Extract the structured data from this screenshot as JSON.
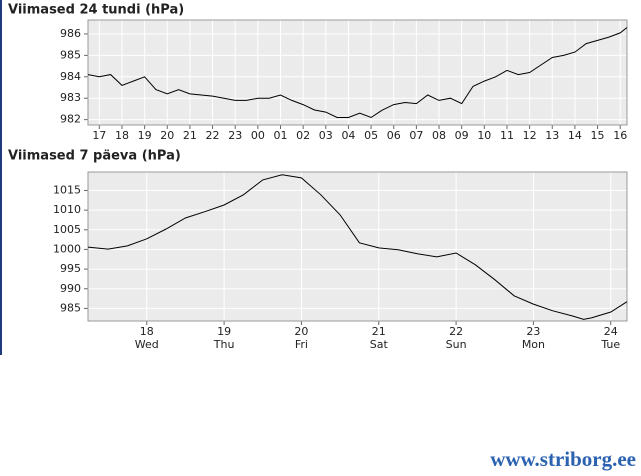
{
  "chart_data": [
    {
      "type": "line",
      "title": "Viimased 24 tundi (hPa)",
      "x": [
        16.5,
        17,
        17.5,
        18,
        18.5,
        19,
        19.5,
        20,
        20.5,
        21,
        21.5,
        22,
        22.5,
        23,
        23.5,
        24,
        24.5,
        25,
        25.5,
        26,
        26.5,
        27,
        27.5,
        28,
        28.5,
        29,
        29.5,
        30,
        30.5,
        31,
        31.5,
        32,
        32.5,
        33,
        33.5,
        34,
        34.5,
        35,
        35.5,
        36,
        36.5,
        37,
        37.5,
        38,
        38.5,
        39,
        39.5,
        40,
        40.3
      ],
      "values": [
        984.1,
        984.0,
        984.1,
        983.6,
        983.8,
        984.0,
        983.4,
        983.2,
        983.4,
        983.2,
        983.15,
        983.1,
        983.0,
        982.9,
        982.9,
        983.0,
        983.0,
        983.15,
        982.9,
        982.7,
        982.45,
        982.35,
        982.1,
        982.1,
        982.3,
        982.1,
        982.45,
        982.7,
        982.8,
        982.75,
        983.15,
        982.9,
        983.0,
        982.75,
        983.55,
        983.8,
        984.0,
        984.3,
        984.1,
        984.2,
        984.55,
        984.9,
        985.0,
        985.15,
        985.55,
        985.7,
        985.85,
        986.05,
        986.3
      ],
      "color": "#000000",
      "background": "#ebebeb",
      "grid": true,
      "xlim": [
        16.5,
        40.3
      ],
      "xticks": [
        17,
        18,
        19,
        20,
        21,
        22,
        23,
        {
          "value": 24,
          "label": "00"
        },
        {
          "value": 25,
          "label": "01"
        },
        {
          "value": 26,
          "label": "02"
        },
        {
          "value": 27,
          "label": "03"
        },
        {
          "value": 28,
          "label": "04"
        },
        {
          "value": 29,
          "label": "05"
        },
        {
          "value": 30,
          "label": "06"
        },
        {
          "value": 31,
          "label": "07"
        },
        {
          "value": 32,
          "label": "08"
        },
        {
          "value": 33,
          "label": "09"
        },
        {
          "value": 34,
          "label": "10"
        },
        {
          "value": 35,
          "label": "11"
        },
        {
          "value": 36,
          "label": "12"
        },
        {
          "value": 37,
          "label": "13"
        },
        {
          "value": 38,
          "label": "14"
        },
        {
          "value": 39,
          "label": "15"
        },
        {
          "value": 40,
          "label": "16"
        }
      ],
      "ylim": [
        981.75,
        986.65
      ],
      "yticks": [
        982,
        983,
        984,
        985,
        986
      ]
    },
    {
      "type": "line",
      "title": "Viimased 7 päeva (hPa)",
      "x": [
        17.24,
        17.5,
        17.75,
        18,
        18.25,
        18.5,
        18.75,
        19,
        19.25,
        19.5,
        19.75,
        20,
        20.25,
        20.5,
        20.75,
        21,
        21.25,
        21.5,
        21.75,
        22,
        22.25,
        22.5,
        22.75,
        23,
        23.25,
        23.5,
        23.65,
        23.75,
        24,
        24.21
      ],
      "values": [
        1000.6,
        1000.1,
        1000.9,
        1002.7,
        1005.2,
        1008.0,
        1009.6,
        1011.3,
        1013.9,
        1017.7,
        1019.0,
        1018.2,
        1013.9,
        1008.8,
        1001.7,
        1000.4,
        999.9,
        998.9,
        998.1,
        999.1,
        996.1,
        992.3,
        988.2,
        986.1,
        984.4,
        983.1,
        982.2,
        982.6,
        984.1,
        986.7
      ],
      "color": "#000000",
      "background": "#ebebeb",
      "grid": true,
      "xlim": [
        17.24,
        24.21
      ],
      "xticks": [
        18,
        19,
        20,
        21,
        22,
        23,
        24
      ],
      "xtick_sublabels": [
        "Wed",
        "Thu",
        "Fri",
        "Sat",
        "Sun",
        "Mon",
        "Tue"
      ],
      "ylim": [
        981.8,
        1019.7
      ],
      "yticks": [
        985,
        990,
        995,
        1000,
        1005,
        1010,
        1015
      ]
    }
  ],
  "footer": "www.striborg.ee"
}
